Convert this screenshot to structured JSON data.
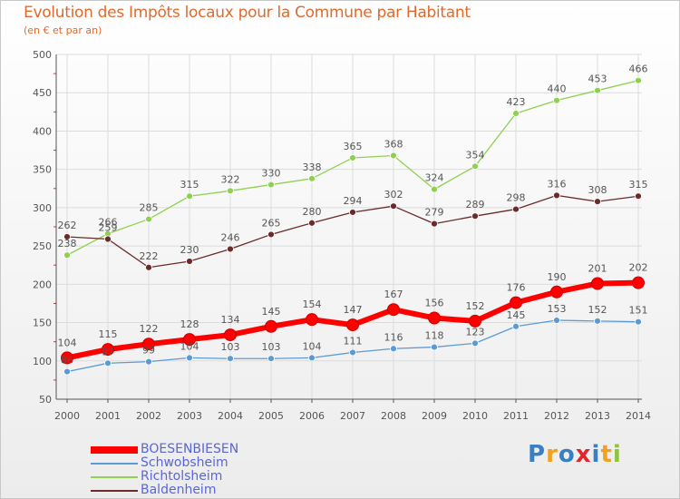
{
  "title": "Evolution des Impôts locaux pour la Commune par Habitant",
  "subtitle": "(en € et par an)",
  "colors": {
    "title": "#e06a2d",
    "axis": "#555555",
    "grid": "#dcdcdc",
    "minor_tick": "#d33030",
    "data_label": "#555555",
    "legend_text": "#5a66d6"
  },
  "logo": {
    "text": "Proxiti",
    "letters": [
      "P",
      "r",
      "o",
      "x",
      "i",
      "t",
      "i"
    ],
    "colors": [
      "#3a7fc4",
      "#f0a21f",
      "#3a7fc4",
      "#e0262d",
      "#3a7fc4",
      "#f0a21f",
      "#8fc23f"
    ]
  },
  "chart_data": {
    "type": "line",
    "title": "Evolution des Impôts locaux pour la Commune par Habitant",
    "subtitle": "(en € et par an)",
    "xlabel": "",
    "ylabel": "",
    "x": [
      "2000",
      "2001",
      "2002",
      "2003",
      "2004",
      "2005",
      "2006",
      "2007",
      "2008",
      "2009",
      "2010",
      "2011",
      "2012",
      "2013",
      "2014"
    ],
    "ylim": [
      50,
      500
    ],
    "yticks": [
      "50",
      "100",
      "150",
      "200",
      "250",
      "300",
      "350",
      "400",
      "450",
      "500"
    ],
    "grid": true,
    "legend_position": "bottom-left",
    "series": [
      {
        "name": "BOESENBIESEN",
        "color": "#ff0000",
        "emphasis": true,
        "values": [
          104,
          115,
          122,
          128,
          134,
          145,
          154,
          147,
          167,
          156,
          152,
          176,
          190,
          201,
          202
        ],
        "labels": [
          "104",
          "115",
          "122",
          "128",
          "134",
          "145",
          "154",
          "147",
          "167",
          "156",
          "152",
          "176",
          "190",
          "201",
          "202"
        ]
      },
      {
        "name": "Schwobsheim",
        "color": "#5b9bd5",
        "emphasis": false,
        "values": [
          86,
          97,
          99,
          104,
          103,
          103,
          104,
          111,
          116,
          118,
          123,
          145,
          153,
          152,
          151
        ],
        "labels": [
          "86",
          "97",
          "99",
          "104",
          "103",
          "103",
          "104",
          "111",
          "116",
          "118",
          "123",
          "145",
          "153",
          "152",
          "151"
        ]
      },
      {
        "name": "Richtolsheim",
        "color": "#8fd14f",
        "emphasis": false,
        "values": [
          238,
          266,
          285,
          315,
          322,
          330,
          338,
          365,
          368,
          324,
          354,
          423,
          440,
          453,
          466
        ],
        "labels": [
          "238",
          "266",
          "285",
          "315",
          "322",
          "330",
          "338",
          "365",
          "368",
          "324",
          "354",
          "423",
          "440",
          "453",
          "466"
        ]
      },
      {
        "name": "Baldenheim",
        "color": "#6b2b2b",
        "emphasis": false,
        "values": [
          262,
          259,
          222,
          230,
          246,
          265,
          280,
          294,
          302,
          279,
          289,
          298,
          316,
          308,
          315
        ],
        "labels": [
          "262",
          "259",
          "222",
          "230",
          "246",
          "265",
          "280",
          "294",
          "302",
          "279",
          "289",
          "298",
          "316",
          "308",
          "315"
        ]
      }
    ]
  }
}
